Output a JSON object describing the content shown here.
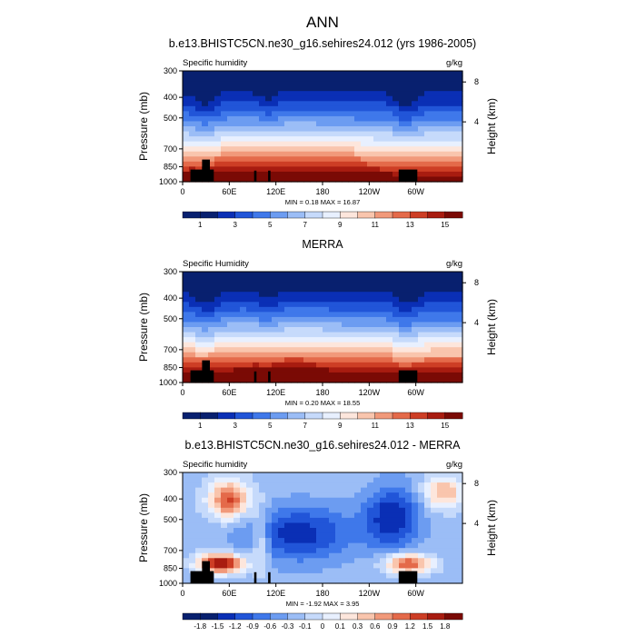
{
  "figure": {
    "main_title": "ANN",
    "height_unit_label": "Height (km)",
    "pressure_label": "Pressure (mb)"
  },
  "chart_data": [
    {
      "type": "heatmap",
      "title": "b.e13.BHISTC5CN.ne30_g16.sehires24.012 (yrs 1986-2005)",
      "left_label": "Specific humidity",
      "units": "g/kg",
      "ylabel": "Pressure (mb)",
      "y2label": "Height (km)",
      "y_ticks": [
        "300",
        "400",
        "500",
        "700",
        "850",
        "1000"
      ],
      "y2_ticks": [
        "8",
        "4"
      ],
      "x_ticks": [
        "0",
        "60E",
        "120E",
        "180",
        "120W",
        "60W"
      ],
      "min_max_text": "MIN =   0.18  MAX =   16.87",
      "min": 0.18,
      "max": 16.87,
      "colorbar_labels": [
        "1",
        "3",
        "5",
        "7",
        "9",
        "11",
        "13",
        "15"
      ],
      "colormap": "blue-white-red",
      "diff": false
    },
    {
      "type": "heatmap",
      "title": "MERRA",
      "left_label": "Specific Humidity",
      "units": "g/kg",
      "ylabel": "Pressure (mb)",
      "y2label": "Height (km)",
      "y_ticks": [
        "300",
        "400",
        "500",
        "700",
        "850",
        "1000"
      ],
      "y2_ticks": [
        "8",
        "4"
      ],
      "x_ticks": [
        "0",
        "60E",
        "120E",
        "180",
        "120W",
        "60W"
      ],
      "min_max_text": "MIN =   0.20  MAX =   18.55",
      "min": 0.2,
      "max": 18.55,
      "colorbar_labels": [
        "1",
        "3",
        "5",
        "7",
        "9",
        "11",
        "13",
        "15"
      ],
      "colormap": "blue-white-red",
      "diff": false
    },
    {
      "type": "heatmap",
      "title": "b.e13.BHISTC5CN.ne30_g16.sehires24.012 - MERRA",
      "left_label": "Specific humidity",
      "units": "g/kg",
      "ylabel": "Pressure (mb)",
      "y2label": "Height (km)",
      "y_ticks": [
        "300",
        "400",
        "500",
        "700",
        "850",
        "1000"
      ],
      "y2_ticks": [
        "8",
        "4"
      ],
      "x_ticks": [
        "0",
        "60E",
        "120E",
        "180",
        "120W",
        "60W"
      ],
      "min_max_text": "MIN =  -1.92  MAX =   3.95",
      "min": -1.92,
      "max": 3.95,
      "colorbar_labels": [
        "-1.8",
        "-1.5",
        "-1.2",
        "-0.9",
        "-0.6",
        "-0.3",
        "-0.1",
        "0",
        "0.1",
        "0.3",
        "0.6",
        "0.9",
        "1.2",
        "1.5",
        "1.8"
      ],
      "colormap": "blue-white-red",
      "diff": true
    }
  ],
  "colors": {
    "palette": [
      "#08206f",
      "#0a2fb5",
      "#2155d8",
      "#3f78ea",
      "#6c9cf1",
      "#9bbdf6",
      "#c6dafb",
      "#e8f0ff",
      "#fde6dc",
      "#f9c5ad",
      "#f1997a",
      "#e46a4a",
      "#cd3e25",
      "#a81c10",
      "#7a0a05"
    ],
    "terrain": "#000000",
    "axis": "#000000"
  }
}
